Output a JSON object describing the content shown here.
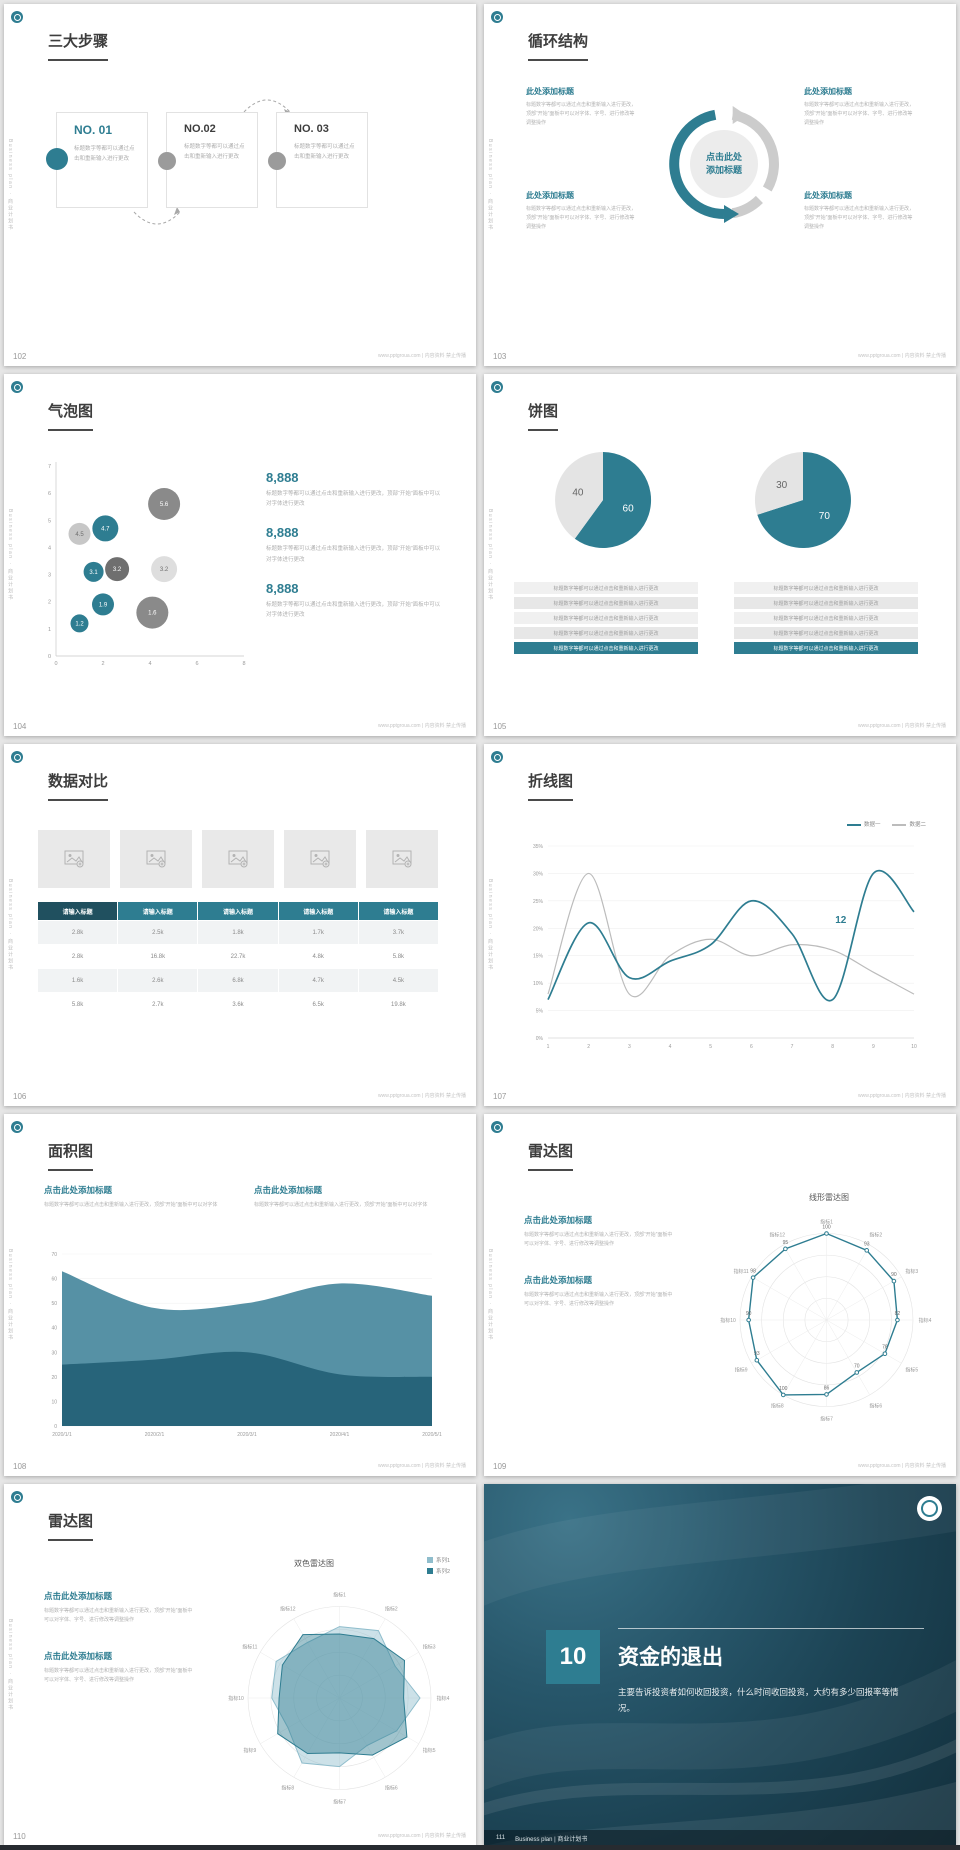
{
  "meta": {
    "sidebar": "Business plan · 商业计划书",
    "footer": "www.pptgroua.com | 内容资料 禁止传播",
    "accent": "#2e7d91"
  },
  "slides": {
    "s102": {
      "page": "102",
      "title": "三大步骤",
      "steps": [
        {
          "no": "NO. 01",
          "text": "标题数字等都可以通过点击和重新输入进行更改"
        },
        {
          "no": "NO.02",
          "text": "标题数字等都可以通过点击和重新输入进行更改"
        },
        {
          "no": "NO. 03",
          "text": "标题数字等都可以通过点击和重新输入进行更改"
        }
      ]
    },
    "s103": {
      "page": "103",
      "title": "循环结构",
      "center": "点击此处添加标题",
      "items": [
        {
          "title": "此处添加标题",
          "text": "标题数字等都可以通过点击和重新输入进行更改，顶部“开始”面板中可以对字体、字号、进行修改等调整操作"
        },
        {
          "title": "此处添加标题",
          "text": "标题数字等都可以通过点击和重新输入进行更改，顶部“开始”面板中可以对字体、字号、进行修改等调整操作"
        },
        {
          "title": "此处添加标题",
          "text": "标题数字等都可以通过点击和重新输入进行更改，顶部“开始”面板中可以对字体、字号、进行修改等调整操作"
        },
        {
          "title": "此处添加标题",
          "text": "标题数字等都可以通过点击和重新输入进行更改，顶部“开始”面板中可以对字体、字号、进行修改等调整操作"
        }
      ]
    },
    "s104": {
      "page": "104",
      "title": "气泡图",
      "stats": [
        {
          "value": "8,888",
          "text": "标题数字等都可以通过点击和重新输入进行更改，顶部“开始”面板中可以对字体进行更改"
        },
        {
          "value": "8,888",
          "text": "标题数字等都可以通过点击和重新输入进行更改，顶部“开始”面板中可以对字体进行更改"
        },
        {
          "value": "8,888",
          "text": "标题数字等都可以通过点击和重新输入进行更改，顶部“开始”面板中可以对字体进行更改"
        }
      ],
      "chart_data": {
        "type": "bubble",
        "xlim": [
          0,
          8
        ],
        "ylim": [
          0,
          7
        ],
        "xticks": [
          0,
          2,
          4,
          6,
          8
        ],
        "yticks": [
          0,
          1,
          2,
          3,
          4,
          5,
          6,
          7
        ],
        "points": [
          {
            "x": 1.0,
            "y": 4.5,
            "r": 11,
            "label": "4.5",
            "color": "#c7c7c7",
            "text": "#6e6e6e"
          },
          {
            "x": 2.1,
            "y": 4.7,
            "r": 13,
            "label": "4.7",
            "color": "#2e7d91",
            "text": "#ffffff"
          },
          {
            "x": 4.6,
            "y": 5.6,
            "r": 16,
            "label": "5.6",
            "color": "#8a8a8a",
            "text": "#ffffff"
          },
          {
            "x": 1.6,
            "y": 3.1,
            "r": 10,
            "label": "3.1",
            "color": "#2e7d91",
            "text": "#ffffff"
          },
          {
            "x": 2.6,
            "y": 3.2,
            "r": 12,
            "label": "3.2",
            "color": "#6f6f6f",
            "text": "#ffffff"
          },
          {
            "x": 4.6,
            "y": 3.2,
            "r": 13,
            "label": "3.2",
            "color": "#dedede",
            "text": "#6e6e6e"
          },
          {
            "x": 2.0,
            "y": 1.9,
            "r": 11,
            "label": "1.9",
            "color": "#2e7d91",
            "text": "#ffffff"
          },
          {
            "x": 1.0,
            "y": 1.2,
            "r": 9,
            "label": "1.2",
            "color": "#2e7d91",
            "text": "#ffffff"
          },
          {
            "x": 4.1,
            "y": 1.6,
            "r": 16,
            "label": "1.6",
            "color": "#8a8a8a",
            "text": "#ffffff"
          }
        ]
      }
    },
    "s105": {
      "page": "105",
      "title": "饼图",
      "row_text": "标题数字等都可以通过点击和重新输入进行更改",
      "chart_data": [
        {
          "type": "pie",
          "values": [
            60,
            40
          ],
          "labels": [
            "60",
            "40"
          ],
          "colors": [
            "#2e7d91",
            "#e4e4e4"
          ],
          "label_colors": [
            "#ffffff",
            "#666666"
          ]
        },
        {
          "type": "pie",
          "values": [
            70,
            30
          ],
          "labels": [
            "70",
            "30"
          ],
          "colors": [
            "#2e7d91",
            "#e4e4e4"
          ],
          "label_colors": [
            "#ffffff",
            "#666666"
          ]
        }
      ]
    },
    "s106": {
      "page": "106",
      "title": "数据对比",
      "table": {
        "headers": [
          "请输入标题",
          "请输入标题",
          "请输入标题",
          "请输入标题",
          "请输入标题"
        ],
        "rows": [
          [
            "2.8k",
            "2.5k",
            "1.8k",
            "1.7k",
            "3.7k"
          ],
          [
            "2.8k",
            "16.8k",
            "22.7k",
            "4.8k",
            "5.8k"
          ],
          [
            "1.6k",
            "2.6k",
            "6.8k",
            "4.7k",
            "4.5k"
          ],
          [
            "5.8k",
            "2.7k",
            "3.6k",
            "6.5k",
            "19.8k"
          ]
        ]
      }
    },
    "s107": {
      "page": "107",
      "title": "折线图",
      "chart_data": {
        "type": "line",
        "x": [
          "1",
          "2",
          "3",
          "4",
          "5",
          "6",
          "7",
          "8",
          "9",
          "10"
        ],
        "ylim": [
          0,
          35
        ],
        "yticks": [
          "0%",
          "5%",
          "10%",
          "15%",
          "20%",
          "25%",
          "30%",
          "35%"
        ],
        "series": [
          {
            "name": "数据一",
            "color": "#2e7d91",
            "values": [
              7,
              21,
              11,
              14,
              17,
              25,
              19,
              7,
              30,
              23
            ]
          },
          {
            "name": "数据二",
            "color": "#bcbcbc",
            "values": [
              8,
              30,
              8,
              15,
              18,
              15,
              17,
              16,
              12,
              8
            ]
          }
        ],
        "annotation": {
          "text": "12",
          "x": 8.2,
          "y": 21
        }
      }
    },
    "s108": {
      "page": "108",
      "title": "面积图",
      "blocks": [
        {
          "title": "点击此处添加标题",
          "text": "标题数字等都可以通过点击和重新输入进行更改，顶部“开始”面板中可以对字体"
        },
        {
          "title": "点击此处添加标题",
          "text": "标题数字等都可以通过点击和重新输入进行更改，顶部“开始”面板中可以对字体"
        }
      ],
      "chart_data": {
        "type": "area",
        "categories": [
          "2020/1/1",
          "2020/2/1",
          "2020/3/1",
          "2020/4/1",
          "2020/5/1"
        ],
        "ylim": [
          0,
          70
        ],
        "yticks": [
          0,
          10,
          20,
          30,
          40,
          50,
          60,
          70
        ],
        "series": [
          {
            "color": "#27647a",
            "values": [
              25,
              27,
              30,
              21,
              20
            ]
          },
          {
            "color": "#4d8ba0",
            "values": [
              63,
              48,
              50,
              58,
              53
            ]
          }
        ]
      }
    },
    "s109": {
      "page": "109",
      "title": "雷达图",
      "subtitle": "线形雷达图",
      "blocks": [
        {
          "title": "点击此处添加标题",
          "text": "标题数字等都可以通过点击和重新输入进行更改，顶部“开始”面板中可以对字体、字号、进行修改等调整操作"
        },
        {
          "title": "点击此处添加标题",
          "text": "标题数字等都可以通过点击和重新输入进行更改，顶部“开始”面板中可以对字体、字号、进行修改等调整操作"
        }
      ],
      "chart_data": {
        "type": "radar-line",
        "max": 100,
        "labels": [
          "指标1",
          "指标2",
          "指标3",
          "指标4",
          "指标5",
          "指标6",
          "指标7",
          "指标8",
          "指标9",
          "指标10",
          "指标11",
          "指标12"
        ],
        "values": [
          100,
          93,
          90,
          82,
          78,
          70,
          86,
          100,
          93,
          90,
          98,
          95
        ],
        "color": "#2e7d91"
      }
    },
    "s110": {
      "page": "110",
      "title": "雷达图",
      "subtitle": "双色雷达图",
      "blocks": [
        {
          "title": "点击此处添加标题",
          "text": "标题数字等都可以通过点击和重新输入进行更改，顶部“开始”面板中可以对字体、字号、进行修改等调整操作"
        },
        {
          "title": "点击此处添加标题",
          "text": "标题数字等都可以通过点击和重新输入进行更改，顶部“开始”面板中可以对字体、字号、进行修改等调整操作"
        }
      ],
      "chart_data": {
        "type": "radar-fill",
        "max": 100,
        "labels": [
          "指标1",
          "指标2",
          "指标3",
          "指标4",
          "指标5",
          "指标6",
          "指标7",
          "指标8",
          "指标9",
          "指标10",
          "指标11",
          "指标12"
        ],
        "series": [
          {
            "name": "系列1",
            "color": "#8fbdcc",
            "values": [
              78,
              85,
              70,
              88,
              72,
              60,
              75,
              82,
              65,
              74,
              80,
              70
            ]
          },
          {
            "name": "系列2",
            "color": "#2e7d91",
            "values": [
              70,
              75,
              82,
              70,
              85,
              72,
              60,
              70,
              78,
              66,
              72,
              80
            ]
          }
        ]
      }
    },
    "s111": {
      "page": "111",
      "number": "10",
      "title": "资金的退出",
      "body": "主要告诉投资者如何收回投资，什么时间收回投资，大约有多少回报率等情况。",
      "footer": "Business plan | 商业计划书"
    }
  }
}
